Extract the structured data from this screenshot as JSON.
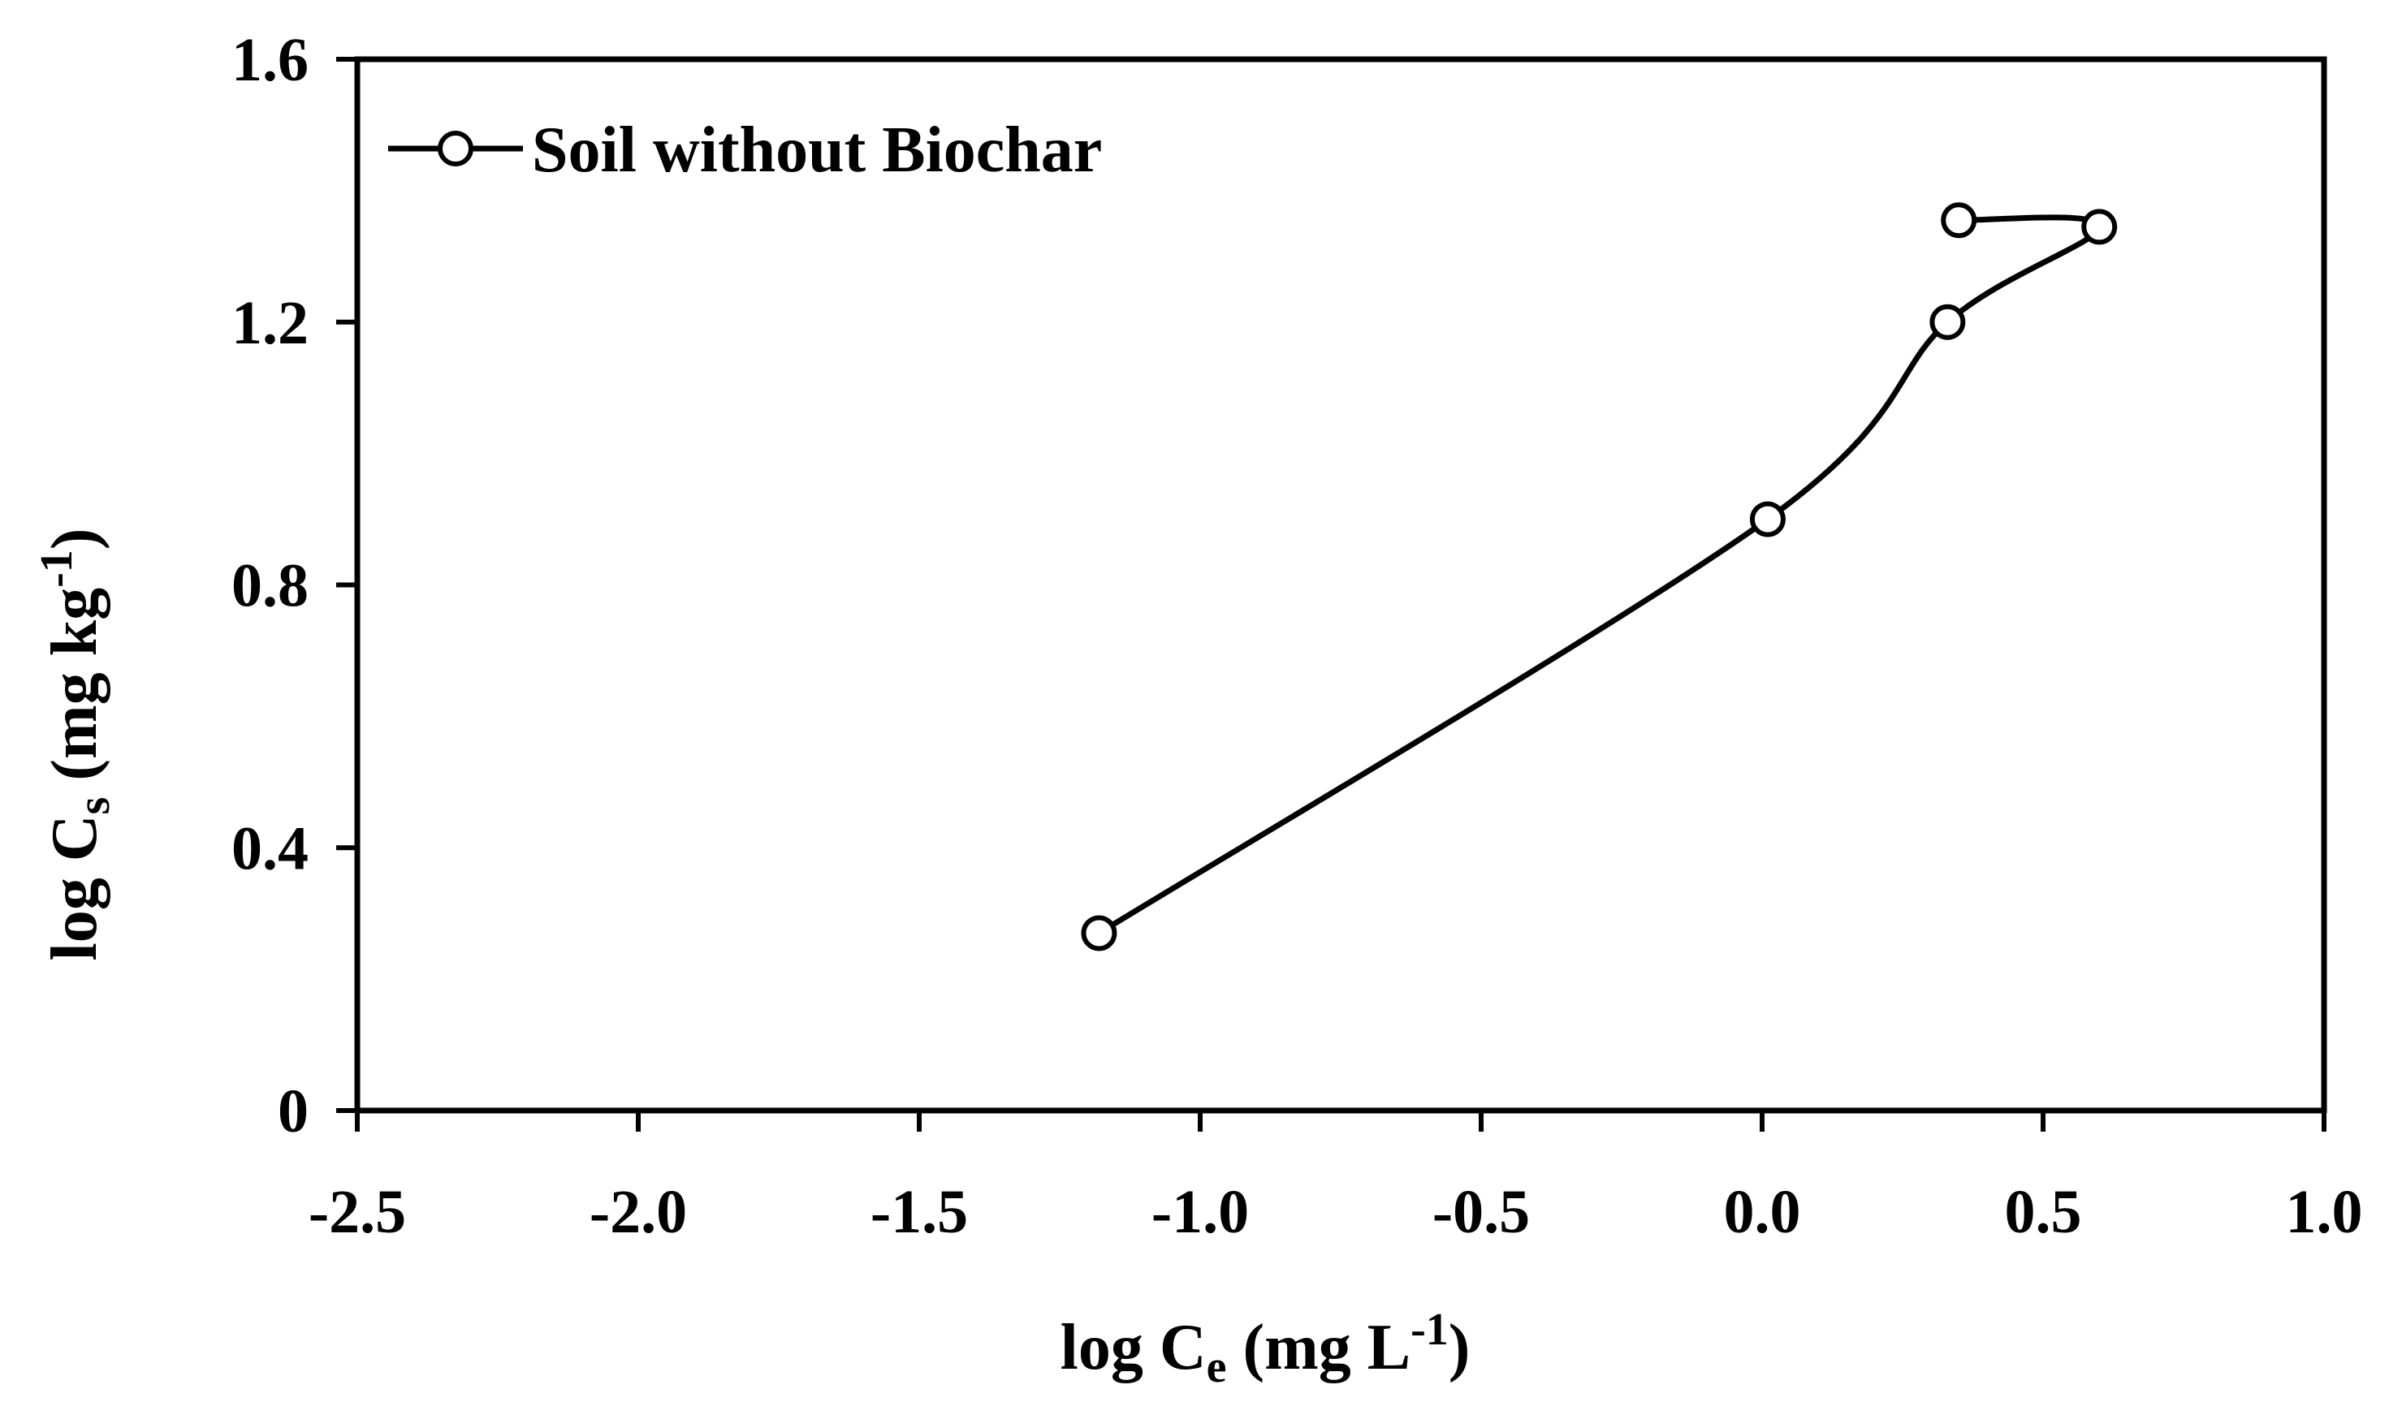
{
  "chart_data": {
    "type": "line",
    "title": "",
    "xlabel": "log C",
    "xlabel_sub": "e",
    "xlabel_unit_open": " (mg L",
    "xlabel_unit_sup": "-1",
    "xlabel_unit_close": ")",
    "ylabel": "log C",
    "ylabel_sub": "s",
    "ylabel_unit_open": " (mg kg",
    "ylabel_unit_sup": "-1",
    "ylabel_unit_close": ")",
    "xlim": [
      -2.5,
      1.0
    ],
    "ylim": [
      0,
      1.6
    ],
    "x_ticks": [
      -2.5,
      -2.0,
      -1.5,
      -1.0,
      -0.5,
      0.0,
      0.5,
      1.0
    ],
    "x_tick_labels": [
      "-2.5",
      "-2.0",
      "-1.5",
      "-1.0",
      "-0.5",
      "0.0",
      "0.5",
      "1.0"
    ],
    "y_ticks": [
      0,
      0.4,
      0.8,
      1.2,
      1.6
    ],
    "y_tick_labels": [
      "0",
      "0.4",
      "0.8",
      "1.2",
      "1.6"
    ],
    "grid": false,
    "legend_position": "top-left",
    "series": [
      {
        "name": "Soil without Biochar",
        "marker": "open-circle",
        "line": "smooth",
        "x": [
          -1.18,
          0.01,
          0.33,
          0.6,
          0.35
        ],
        "y": [
          0.27,
          0.9,
          1.2,
          1.345,
          1.355
        ]
      }
    ],
    "colors": {
      "line": "#000000",
      "marker_fill": "#ffffff",
      "axis": "#000000"
    }
  }
}
